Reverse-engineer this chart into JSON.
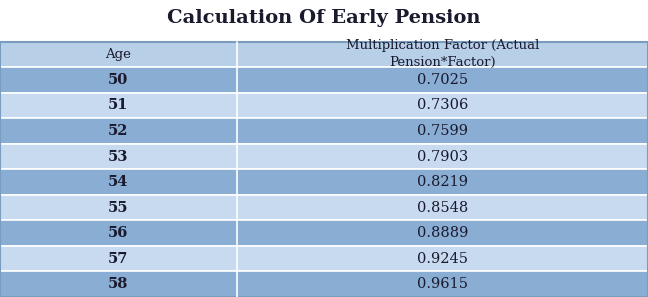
{
  "title": "Calculation Of Early Pension",
  "col1_header": "Age",
  "col2_header": "Multiplication Factor (Actual\nPension*Factor)",
  "ages": [
    "50",
    "51",
    "52",
    "53",
    "54",
    "55",
    "56",
    "57",
    "58"
  ],
  "factors": [
    "0.7025",
    "0.7306",
    "0.7599",
    "0.7903",
    "0.8219",
    "0.8548",
    "0.8889",
    "0.9245",
    "0.9615"
  ],
  "header_bg": "#b8cfe8",
  "row_bg_dark": "#8aadd4",
  "row_bg_light": "#c8daf0",
  "title_color": "#1a1a2e",
  "text_color": "#1a1a2e",
  "border_color": "#ffffff",
  "col_split": 0.365,
  "figsize": [
    6.48,
    2.97
  ],
  "dpi": 100
}
